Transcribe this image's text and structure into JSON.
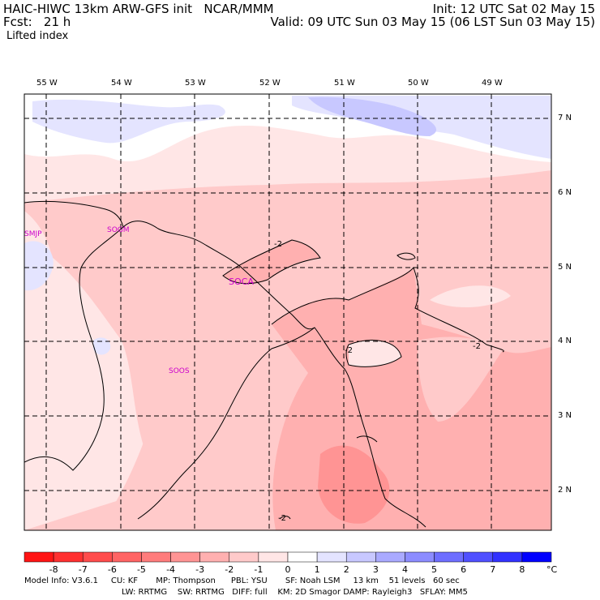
{
  "header": {
    "model_title": "HAIC-HIWC 13km ARW-GFS init   NCAR/MMM",
    "forecast": "Fcst:   21 h",
    "field": "Lifted index",
    "init": "Init: 12 UTC Sat 02 May 15",
    "valid": "Valid: 09 UTC Sun 03 May 15 (06 LST Sun 03 May 15)"
  },
  "map": {
    "lon_labels": [
      "55 W",
      "54 W",
      "53 W",
      "52 W",
      "51 W",
      "50 W",
      "49 W"
    ],
    "lat_labels": [
      "7 N",
      "6 N",
      "5 N",
      "4 N",
      "3 N",
      "2 N"
    ],
    "station_labels": [
      "SMJP",
      "SOGM",
      "SOCA",
      "SOOS"
    ],
    "contour_labels": [
      "-2",
      "-2",
      "-2",
      "-2",
      "-2"
    ]
  },
  "colorbar": {
    "ticks": [
      "-8",
      "-7",
      "-6",
      "-5",
      "-4",
      "-3",
      "-2",
      "-1",
      "0",
      "1",
      "2",
      "3",
      "4",
      "5",
      "6",
      "7",
      "8"
    ],
    "unit": "°C",
    "colors": [
      "#ff1414",
      "#ff3030",
      "#ff4c4c",
      "#ff6464",
      "#ff7c7c",
      "#ff9494",
      "#ffb0b0",
      "#ffcaca",
      "#ffe6e6",
      "#ffffff",
      "#e4e4ff",
      "#c8c8ff",
      "#aaaaff",
      "#8c8cff",
      "#6e6eff",
      "#5050ff",
      "#3232ff",
      "#0000ff"
    ]
  },
  "footer": {
    "line1": "Model Info: V3.6.1     CU: KF       MP: Thompson      PBL: YSU       SF: Noah LSM     13 km    51 levels   60 sec",
    "line2": "LW: RRTMG    SW: RRTMG   DIFF: full    KM: 2D Smagor DAMP: Rayleigh3   SFLAY: MM5"
  }
}
